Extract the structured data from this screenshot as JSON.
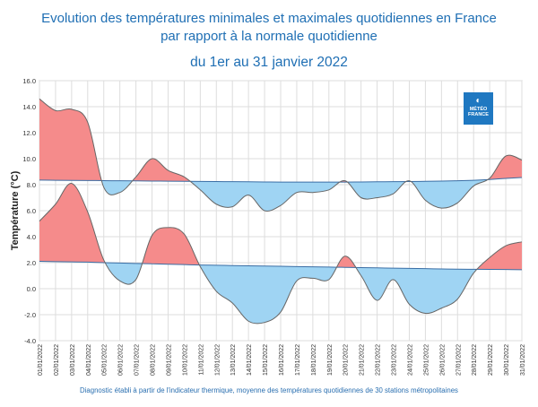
{
  "title_line1": "Evolution des températures minimales et maximales quotidiennes en France",
  "title_line2": "par rapport à la normale quotidienne",
  "title_line3": "du 1er au 31 janvier 2022",
  "footnote": "Diagnostic établi à partir de l'indicateur thermique, moyenne des températures quotidiennes de 30 stations métropolitaines",
  "logo": {
    "line1": "MÉTÉO",
    "line2": "FRANCE",
    "icon": "meteo-france-logo-icon"
  },
  "colors": {
    "above_normal": "#f58b8b",
    "below_normal": "#9fd4f3",
    "line": "#666666",
    "normal_line": "#3a6ea5",
    "title": "#1f6fb4"
  },
  "chart_data": {
    "type": "area",
    "xlabel": "",
    "ylabel": "Température (°C)",
    "ylim": [
      -4.0,
      16.0
    ],
    "yticks": [
      "-4.0",
      "-2.0",
      "0.0",
      "2.0",
      "4.0",
      "6.0",
      "8.0",
      "10.0",
      "12.0",
      "14.0",
      "16.0"
    ],
    "grid": true,
    "categories": [
      "01/01/2022",
      "02/01/2022",
      "03/01/2022",
      "04/01/2022",
      "05/01/2022",
      "06/01/2022",
      "07/01/2022",
      "08/01/2022",
      "09/01/2022",
      "10/01/2022",
      "11/01/2022",
      "12/01/2022",
      "13/01/2022",
      "14/01/2022",
      "15/01/2022",
      "16/01/2022",
      "17/01/2022",
      "18/01/2022",
      "19/01/2022",
      "20/01/2022",
      "21/01/2022",
      "22/01/2022",
      "23/01/2022",
      "24/01/2022",
      "25/01/2022",
      "26/01/2022",
      "27/01/2022",
      "28/01/2022",
      "29/01/2022",
      "30/01/2022",
      "31/01/2022"
    ],
    "series": [
      {
        "values": [
          14.6,
          13.7,
          13.8,
          12.8,
          7.8,
          7.4,
          8.6,
          10.0,
          9.1,
          8.6,
          7.6,
          6.5,
          6.3,
          7.2,
          6.0,
          6.4,
          7.4,
          7.4,
          7.6,
          8.3,
          7.0,
          7.0,
          7.3,
          8.3,
          6.8,
          6.2,
          6.6,
          7.9,
          8.5,
          10.2,
          9.9
        ]
      },
      {
        "values": [
          8.35,
          8.34,
          8.33,
          8.32,
          8.31,
          8.3,
          8.29,
          8.28,
          8.27,
          8.26,
          8.25,
          8.24,
          8.23,
          8.22,
          8.21,
          8.2,
          8.2,
          8.2,
          8.2,
          8.2,
          8.21,
          8.22,
          8.23,
          8.24,
          8.26,
          8.28,
          8.3,
          8.34,
          8.4,
          8.48,
          8.55
        ]
      },
      {
        "values": [
          5.2,
          6.5,
          8.1,
          5.9,
          2.2,
          0.6,
          0.7,
          4.1,
          4.7,
          4.2,
          1.7,
          -0.2,
          -1.1,
          -2.5,
          -2.6,
          -1.8,
          0.6,
          0.8,
          0.7,
          2.5,
          1.0,
          -0.9,
          0.7,
          -1.2,
          -1.9,
          -1.5,
          -0.8,
          1.2,
          2.4,
          3.3,
          3.6
        ]
      },
      {
        "values": [
          2.1,
          2.08,
          2.06,
          2.04,
          2.0,
          1.97,
          1.94,
          1.91,
          1.88,
          1.85,
          1.82,
          1.8,
          1.78,
          1.76,
          1.74,
          1.72,
          1.7,
          1.68,
          1.66,
          1.64,
          1.62,
          1.6,
          1.58,
          1.56,
          1.54,
          1.52,
          1.5,
          1.49,
          1.48,
          1.47,
          1.46
        ]
      }
    ]
  }
}
